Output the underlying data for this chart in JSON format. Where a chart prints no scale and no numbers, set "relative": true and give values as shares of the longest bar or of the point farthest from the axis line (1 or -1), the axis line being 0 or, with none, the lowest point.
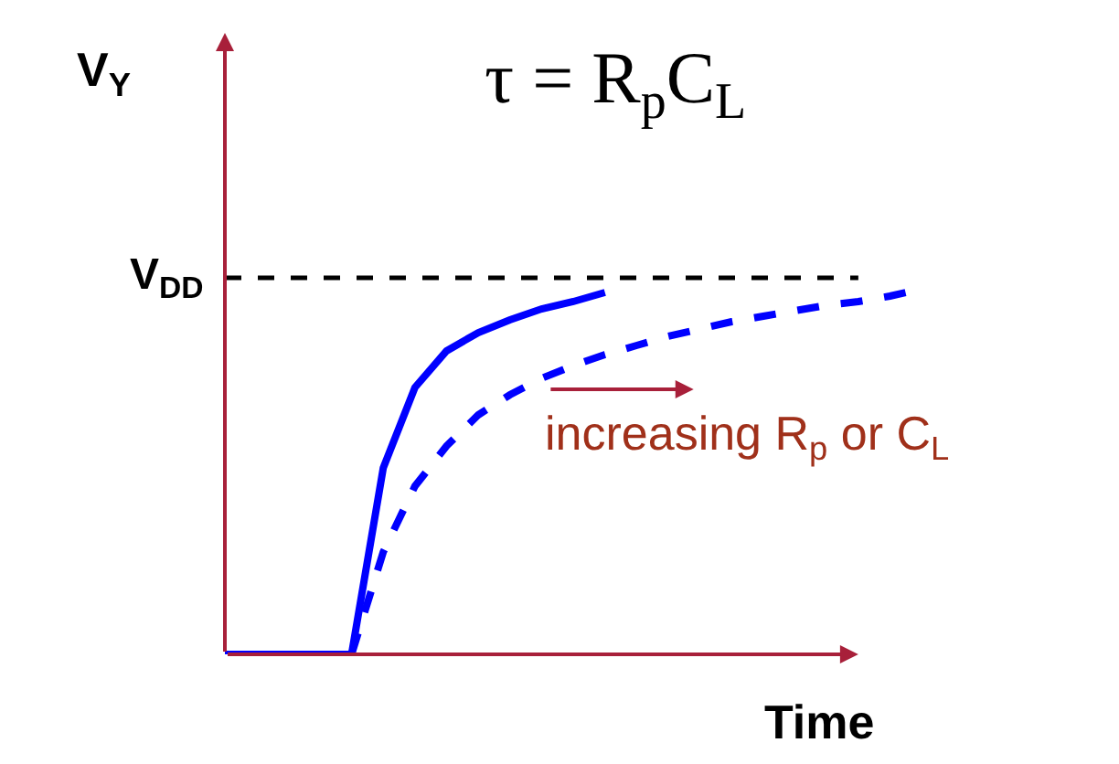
{
  "chart_data": {
    "type": "line",
    "relative": true,
    "title": "τ = R$_{p}$C$_{L}$",
    "ylabel": "V$_{Y}$",
    "xlabel": "Time",
    "annotations": [
      "increasing R$_{p}$ or C$_{L}$"
    ],
    "ref_lines": [
      {
        "axis": "y",
        "value": 1.03,
        "label": "V$_{DD}$",
        "color": "#000000",
        "line_style": "dashed"
      }
    ],
    "categories": [
      null,
      null,
      null,
      null,
      null,
      null,
      null,
      null,
      null,
      null,
      null,
      null,
      null,
      null,
      null,
      null,
      null,
      null,
      null,
      null,
      null,
      null,
      null
    ],
    "series": [
      {
        "color": "#0000ff",
        "line_style": "solid",
        "values": [
          0,
          0,
          0,
          0,
          0,
          0.51,
          0.73,
          0.83,
          0.88,
          0.915,
          0.945,
          0.965,
          0.99,
          null,
          null,
          null,
          null,
          null,
          null,
          null,
          null,
          null,
          null
        ]
      },
      {
        "color": "#0000ff",
        "line_style": "dashed",
        "values": [
          null,
          null,
          null,
          null,
          0,
          0.28,
          0.46,
          0.57,
          0.655,
          0.71,
          0.755,
          0.79,
          0.82,
          0.845,
          0.87,
          0.89,
          0.91,
          0.925,
          0.94,
          0.955,
          0.965,
          0.98,
          1
        ]
      }
    ],
    "grid": false,
    "marker": "none"
  }
}
